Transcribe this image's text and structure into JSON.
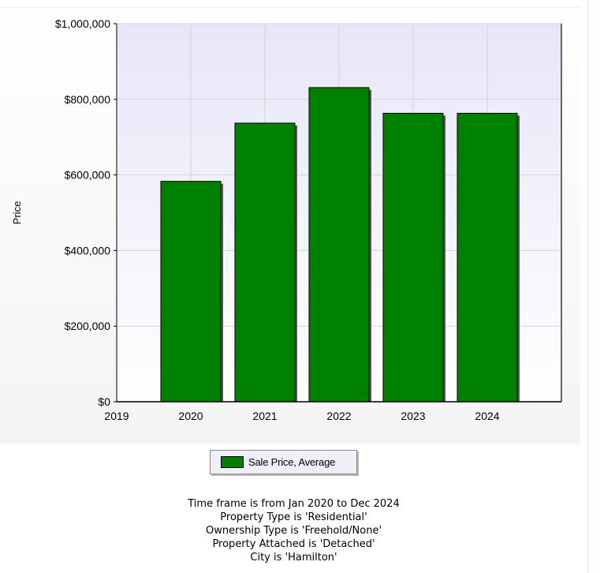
{
  "chart_data": {
    "type": "bar",
    "ylabel": "Price",
    "x_ticks": [
      "2019",
      "2020",
      "2021",
      "2022",
      "2023",
      "2024"
    ],
    "categories": [
      "2020",
      "2021",
      "2022",
      "2023",
      "2024"
    ],
    "series": [
      {
        "name": "Sale Price, Average",
        "color": "#008000",
        "values": [
          583000,
          737000,
          831000,
          763000,
          763000
        ]
      }
    ],
    "ylim": [
      0,
      1000000
    ],
    "y_ticks": [
      0,
      200000,
      400000,
      600000,
      800000,
      1000000
    ],
    "y_tick_labels": [
      "$0",
      "$200,000",
      "$400,000",
      "$600,000",
      "$800,000",
      "$1,000,000"
    ],
    "grid": true,
    "legend_position": "bottom-center"
  },
  "legend": {
    "label": "Sale Price, Average"
  },
  "criteria": [
    "Time frame is from Jan 2020 to Dec 2024",
    "Property Type is 'Residential'",
    "Ownership Type is 'Freehold/None'",
    "Property Attached is 'Detached'",
    "City is 'Hamilton'"
  ]
}
